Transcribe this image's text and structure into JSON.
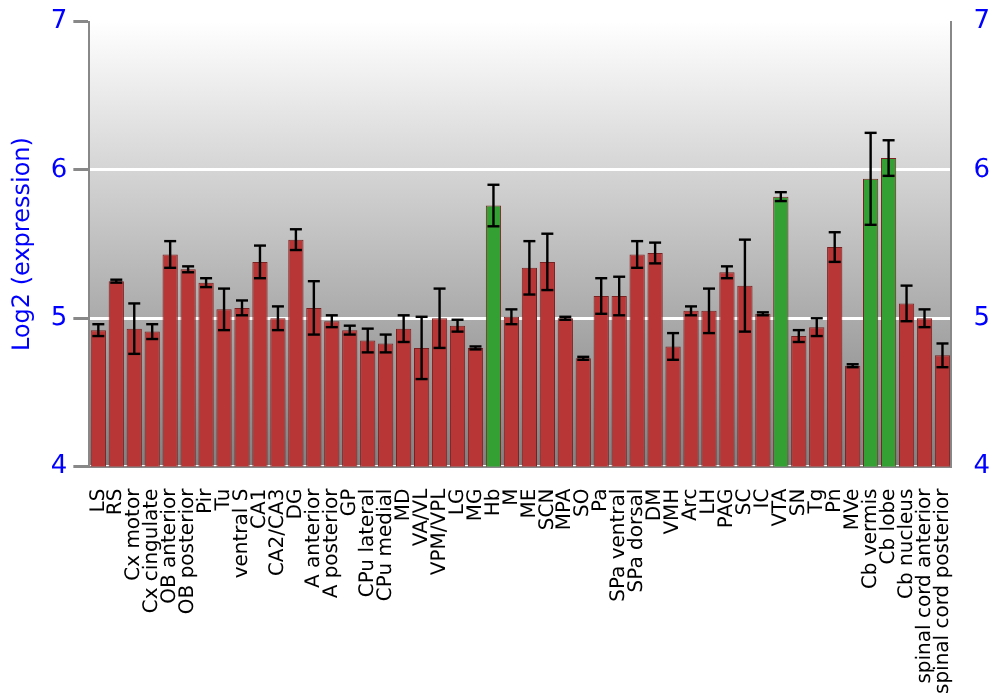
{
  "chart_data": {
    "type": "bar",
    "ylabel": "Log2 (expression)",
    "categories": [
      "LS",
      "RS",
      "Cx motor",
      "Cx cingulate",
      "OB anterior",
      "OB posterior",
      "Pir",
      "Tu",
      "ventral S",
      "CA1",
      "CA2/CA3",
      "DG",
      "A anterior",
      "A posterior",
      "GP",
      "CPu lateral",
      "CPu medial",
      "MD",
      "VA/VL",
      "VPM/VPL",
      "LG",
      "MG",
      "Hb",
      "M",
      "ME",
      "SCN",
      "MPA",
      "SO",
      "Pa",
      "SPa ventral",
      "SPa dorsal",
      "DM",
      "VMH",
      "Arc",
      "LH",
      "PAG",
      "SC",
      "IC",
      "VTA",
      "SN",
      "Tg",
      "Pn",
      "MVe",
      "Cb vermis",
      "Cb lobe",
      "Cb nucleus",
      "spinal cord anterior",
      "spinal cord posterior"
    ],
    "values": [
      4.92,
      5.25,
      4.93,
      4.91,
      5.43,
      5.33,
      5.24,
      5.06,
      5.07,
      5.38,
      5.0,
      5.53,
      5.07,
      4.98,
      4.92,
      4.85,
      4.83,
      4.93,
      4.8,
      5.0,
      4.95,
      4.8,
      5.76,
      5.01,
      5.34,
      5.38,
      5.0,
      4.73,
      5.15,
      5.15,
      5.43,
      5.44,
      4.81,
      5.05,
      5.05,
      5.31,
      5.22,
      5.03,
      5.82,
      4.88,
      4.94,
      5.48,
      4.68,
      5.94,
      6.08,
      5.1,
      5.0,
      4.75
    ],
    "errors": [
      0.04,
      0.01,
      0.17,
      0.05,
      0.09,
      0.02,
      0.03,
      0.14,
      0.05,
      0.11,
      0.08,
      0.07,
      0.18,
      0.04,
      0.03,
      0.08,
      0.06,
      0.09,
      0.21,
      0.2,
      0.04,
      0.01,
      0.14,
      0.05,
      0.18,
      0.19,
      0.01,
      0.01,
      0.12,
      0.13,
      0.09,
      0.07,
      0.09,
      0.03,
      0.15,
      0.04,
      0.31,
      0.01,
      0.03,
      0.04,
      0.06,
      0.1,
      0.01,
      0.31,
      0.12,
      0.12,
      0.06,
      0.08
    ],
    "colors": [
      "#b83636",
      "#b83636",
      "#b83636",
      "#b83636",
      "#b83636",
      "#b83636",
      "#b83636",
      "#b83636",
      "#b83636",
      "#b83636",
      "#b83636",
      "#b83636",
      "#b83636",
      "#b83636",
      "#b83636",
      "#b83636",
      "#b83636",
      "#b83636",
      "#b83636",
      "#b83636",
      "#b83636",
      "#b83636",
      "#34a034",
      "#b83636",
      "#b83636",
      "#b83636",
      "#b83636",
      "#b83636",
      "#b83636",
      "#b83636",
      "#b83636",
      "#b83636",
      "#b83636",
      "#b83636",
      "#b83636",
      "#b83636",
      "#b83636",
      "#b83636",
      "#34a034",
      "#b83636",
      "#b83636",
      "#b83636",
      "#b83636",
      "#34a034",
      "#34a034",
      "#b83636",
      "#b83636",
      "#b83636"
    ],
    "ylim": [
      4,
      7
    ],
    "yticks": [
      4,
      5,
      6,
      7
    ],
    "y2lim": [
      4,
      7
    ],
    "y2ticks": [
      4,
      5,
      6,
      7
    ],
    "grid": "y",
    "legend": false
  }
}
